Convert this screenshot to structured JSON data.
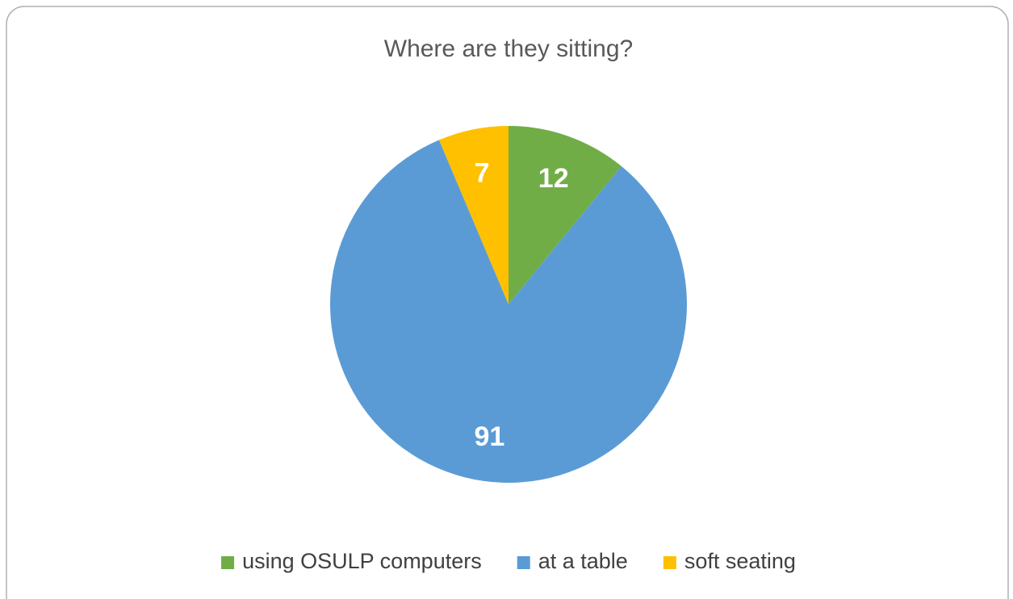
{
  "chart_data": {
    "type": "pie",
    "title": "Where are they sitting?",
    "categories": [
      "using OSULP computers",
      "at a table",
      "soft seating"
    ],
    "values": [
      12,
      91,
      7
    ],
    "colors": [
      "#70ad47",
      "#5b9bd5",
      "#ffc000"
    ],
    "legend": "bottom"
  }
}
